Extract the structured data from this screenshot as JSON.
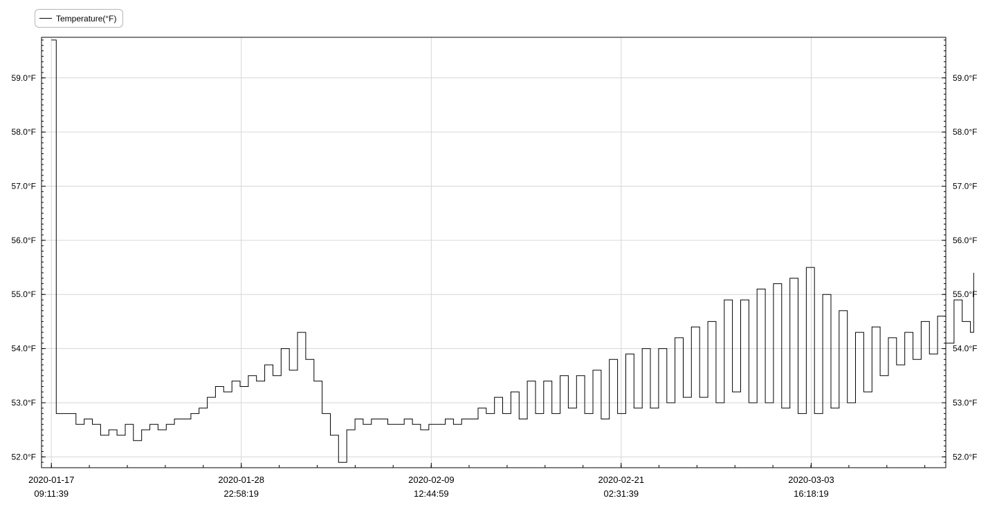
{
  "legend": {
    "label": "Temperature(°F)"
  },
  "chart_data": {
    "type": "line",
    "series": [
      {
        "name": "Temperature(°F)",
        "color": "#000000",
        "x": [
          0,
          0.3,
          1,
          1.5,
          2,
          2.5,
          3,
          3.5,
          4,
          4.5,
          5,
          5.5,
          6,
          6.5,
          7,
          7.5,
          8,
          8.5,
          9,
          9.5,
          10,
          10.5,
          11,
          11.5,
          12,
          12.5,
          13,
          13.5,
          14,
          14.5,
          15,
          15.5,
          16,
          16.5,
          17,
          17.5,
          18,
          18.5,
          19,
          19.5,
          20,
          20.5,
          21,
          21.5,
          22,
          22.5,
          23,
          23.5,
          24,
          24.5,
          25,
          25.5,
          26,
          26.5,
          27,
          27.5,
          28,
          28.5,
          29,
          29.5,
          30,
          30.5,
          31,
          31.5,
          32,
          32.5,
          33,
          33.5,
          34,
          34.5,
          35,
          35.5,
          36,
          36.5,
          37,
          37.5,
          38,
          38.5,
          39,
          39.5,
          40,
          40.5,
          41,
          41.5,
          42,
          42.5,
          43,
          43.5,
          44,
          44.5,
          45,
          45.5,
          46,
          46.5,
          47,
          47.5,
          48,
          48.5,
          49,
          49.5,
          50,
          50.5,
          51,
          51.5,
          52,
          52.5,
          53,
          53.5,
          54,
          54.5,
          55,
          55.5,
          56,
          56.2
        ],
        "y": [
          59.7,
          52.8,
          52.8,
          52.6,
          52.7,
          52.6,
          52.4,
          52.5,
          52.4,
          52.6,
          52.3,
          52.5,
          52.6,
          52.5,
          52.6,
          52.7,
          52.7,
          52.8,
          52.9,
          53.1,
          53.3,
          53.2,
          53.4,
          53.3,
          53.5,
          53.4,
          53.7,
          53.5,
          54.0,
          53.6,
          54.3,
          53.8,
          53.4,
          52.8,
          52.4,
          51.9,
          52.5,
          52.7,
          52.6,
          52.7,
          52.7,
          52.6,
          52.6,
          52.7,
          52.6,
          52.5,
          52.6,
          52.6,
          52.7,
          52.6,
          52.7,
          52.7,
          52.9,
          52.8,
          53.1,
          52.8,
          53.2,
          52.7,
          53.4,
          52.8,
          53.4,
          52.8,
          53.5,
          52.9,
          53.5,
          52.8,
          53.6,
          52.7,
          53.8,
          52.8,
          53.9,
          52.9,
          54.0,
          52.9,
          54.0,
          53.0,
          54.2,
          53.1,
          54.4,
          53.1,
          54.5,
          53.0,
          54.9,
          53.2,
          54.9,
          53.0,
          55.1,
          53.0,
          55.2,
          52.9,
          55.3,
          52.8,
          55.5,
          52.8,
          55.0,
          52.9,
          54.7,
          53.0,
          54.3,
          53.2,
          54.4,
          53.5,
          54.2,
          53.7,
          54.3,
          53.8,
          54.5,
          53.9,
          54.6,
          54.1,
          54.9,
          54.5,
          54.3,
          55.4
        ]
      }
    ],
    "xunit": "days since 2020-01-17 09:11:39",
    "xticks": [
      0,
      11.57,
      23.15,
      34.72,
      46.3
    ],
    "xtick_labels": [
      [
        "2020-01-17",
        "09:11:39"
      ],
      [
        "2020-01-28",
        "22:58:19"
      ],
      [
        "2020-02-09",
        "12:44:59"
      ],
      [
        "2020-02-21",
        "02:31:39"
      ],
      [
        "2020-03-03",
        "16:18:19"
      ]
    ],
    "xlim": [
      -0.6,
      54.5
    ],
    "yticks": [
      52.0,
      53.0,
      54.0,
      55.0,
      56.0,
      57.0,
      58.0,
      59.0
    ],
    "ytick_labels": [
      "52.0°F",
      "53.0°F",
      "54.0°F",
      "55.0°F",
      "56.0°F",
      "57.0°F",
      "58.0°F",
      "59.0°F"
    ],
    "ylim": [
      51.8,
      59.75
    ],
    "grid": true,
    "legend_position": "top-left"
  }
}
